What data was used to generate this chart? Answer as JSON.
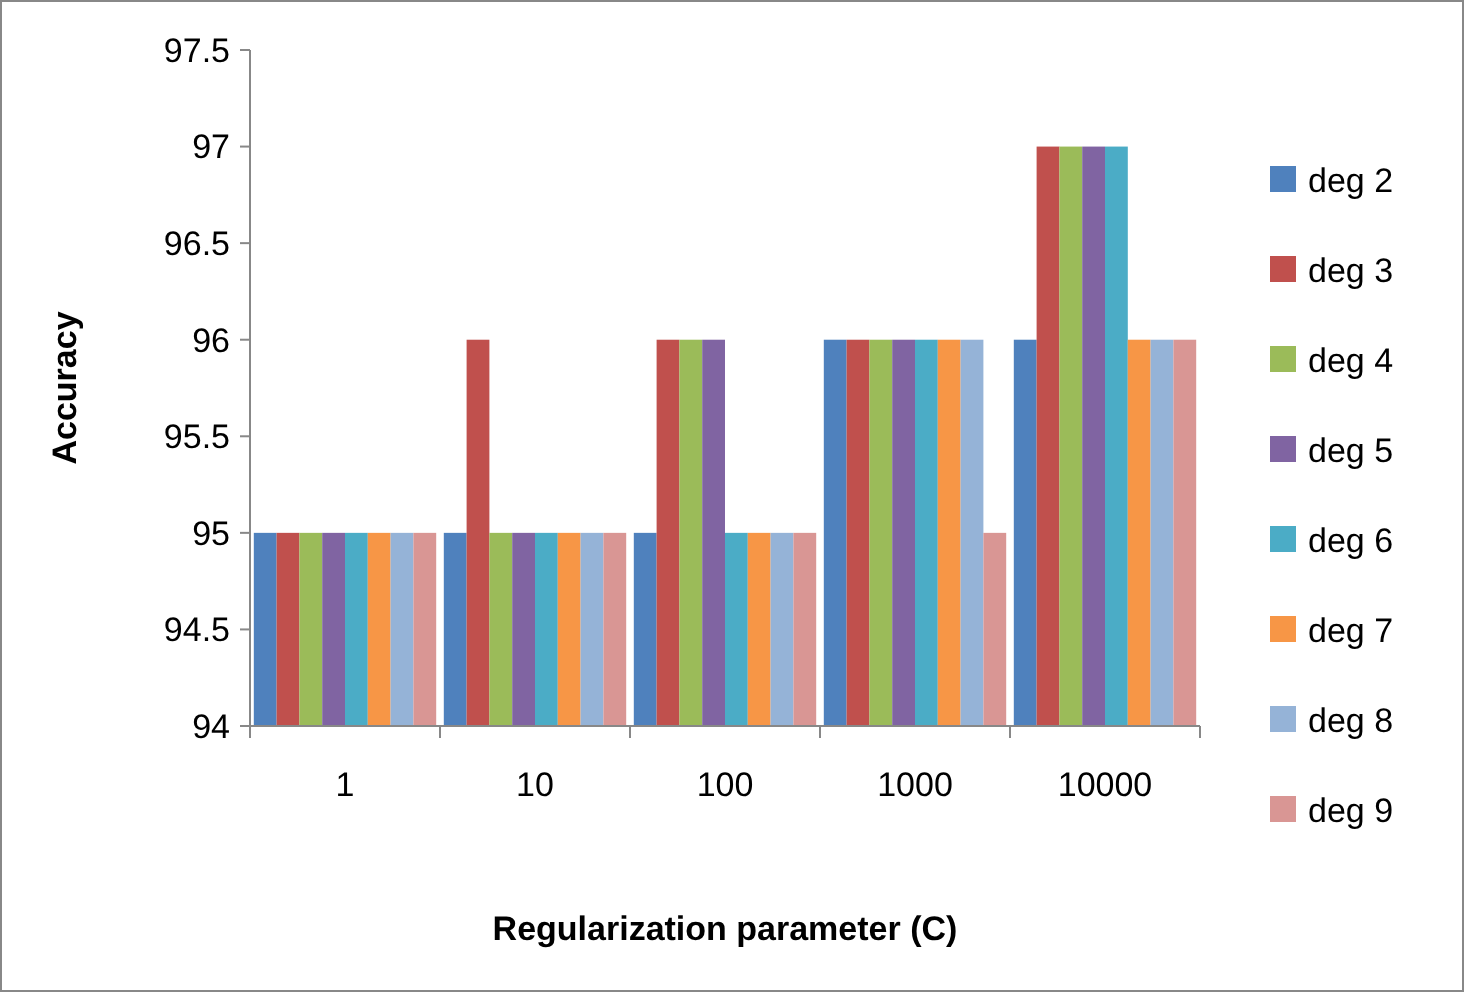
{
  "chart_data": {
    "type": "bar",
    "xlabel": "Regularization parameter (C)",
    "ylabel": "Accuracy",
    "categories": [
      "1",
      "10",
      "100",
      "1000",
      "10000"
    ],
    "ylim": [
      94,
      97.5
    ],
    "yticks": [
      94,
      {
        "value": 94.5,
        "label": "94.5"
      },
      95,
      {
        "value": 95.5,
        "label": "95.5"
      },
      96,
      {
        "value": 96.5,
        "label": "96.5"
      },
      97,
      {
        "value": 97.5,
        "label": "97.5"
      }
    ],
    "grid": false,
    "legend": "right",
    "series": [
      {
        "name": "deg 2",
        "color": "#4f81bd",
        "values": [
          95,
          95,
          95,
          96,
          96
        ]
      },
      {
        "name": "deg 3",
        "color": "#c0504d",
        "values": [
          95,
          96,
          96,
          96,
          97
        ]
      },
      {
        "name": "deg 4",
        "color": "#9bbb59",
        "values": [
          95,
          95,
          96,
          96,
          97
        ]
      },
      {
        "name": "deg 5",
        "color": "#8064a2",
        "values": [
          95,
          95,
          96,
          96,
          97
        ]
      },
      {
        "name": "deg 6",
        "color": "#4bacc6",
        "values": [
          95,
          95,
          95,
          96,
          97
        ]
      },
      {
        "name": "deg 7",
        "color": "#f79646",
        "values": [
          95,
          95,
          95,
          96,
          96
        ]
      },
      {
        "name": "deg 8",
        "color": "#95b3d7",
        "values": [
          95,
          95,
          95,
          96,
          96
        ]
      },
      {
        "name": "deg 9",
        "color": "#d99694",
        "values": [
          95,
          95,
          95,
          95,
          96
        ]
      }
    ]
  }
}
